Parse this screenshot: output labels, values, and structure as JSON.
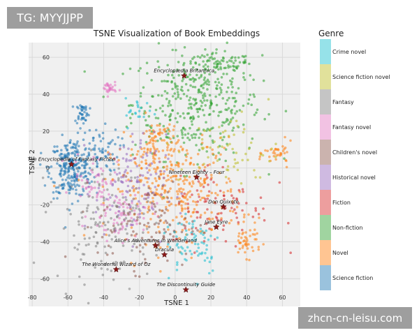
{
  "watermarks": {
    "top_left": "TG: MYYJJPP",
    "bottom_right": "zhcn-cn-leisu.com"
  },
  "chart_data": {
    "type": "scatter",
    "title": "TSNE Visualization of Book Embeddings",
    "xlabel": "TSNE 1",
    "ylabel": "TSNE 2",
    "xlim": [
      -82,
      70
    ],
    "ylim": [
      -75,
      68
    ],
    "xticks": [
      -80,
      -60,
      -40,
      -20,
      0,
      20,
      40,
      60
    ],
    "yticks": [
      -60,
      -40,
      -20,
      0,
      20,
      40,
      60
    ],
    "grid": true,
    "background": "#f0f0f0",
    "legend": {
      "title": "Genre",
      "placement": "right",
      "entries": [
        {
          "name": "Crime novel",
          "color": "#17becf"
        },
        {
          "name": "Science fiction novel",
          "color": "#bcbd22"
        },
        {
          "name": "Fantasy",
          "color": "#7f7f7f"
        },
        {
          "name": "Fantasy novel",
          "color": "#e377c2"
        },
        {
          "name": "Children's novel",
          "color": "#8c564b"
        },
        {
          "name": "Historical novel",
          "color": "#9467bd"
        },
        {
          "name": "Fiction",
          "color": "#d62728"
        },
        {
          "name": "Non-fiction",
          "color": "#2ca02c"
        },
        {
          "name": "Novel",
          "color": "#ff7f0e"
        },
        {
          "name": "Science fiction",
          "color": "#1f77b4"
        }
      ]
    },
    "clusters": [
      {
        "genre": "Non-fiction",
        "cx": 12,
        "cy": 35,
        "sx": 18,
        "sy": 15,
        "n": 380
      },
      {
        "genre": "Non-fiction",
        "cx": 25,
        "cy": 56,
        "sx": 9,
        "sy": 3,
        "n": 70
      },
      {
        "genre": "Science fiction",
        "cx": -58,
        "cy": 0,
        "sx": 6,
        "sy": 8,
        "n": 260
      },
      {
        "genre": "Science fiction",
        "cx": -52,
        "cy": 30,
        "sx": 2,
        "sy": 3,
        "n": 40
      },
      {
        "genre": "Science fiction",
        "cx": -43,
        "cy": 10,
        "sx": 6,
        "sy": 6,
        "n": 60
      },
      {
        "genre": "Novel",
        "cx": 0,
        "cy": -12,
        "sx": 18,
        "sy": 14,
        "n": 330
      },
      {
        "genre": "Novel",
        "cx": -10,
        "cy": 12,
        "sx": 6,
        "sy": 8,
        "n": 80
      },
      {
        "genre": "Novel",
        "cx": 40,
        "cy": -40,
        "sx": 4,
        "sy": 4,
        "n": 45
      },
      {
        "genre": "Novel",
        "cx": 58,
        "cy": 8,
        "sx": 4,
        "sy": 3,
        "n": 35
      },
      {
        "genre": "Fantasy novel",
        "cx": -37,
        "cy": 43,
        "sx": 2,
        "sy": 2,
        "n": 30
      },
      {
        "genre": "Fantasy novel",
        "cx": -30,
        "cy": -25,
        "sx": 9,
        "sy": 7,
        "n": 80
      },
      {
        "genre": "Fantasy novel",
        "cx": -45,
        "cy": -5,
        "sx": 6,
        "sy": 7,
        "n": 50
      },
      {
        "genre": "Historical novel",
        "cx": -25,
        "cy": -10,
        "sx": 10,
        "sy": 14,
        "n": 120
      },
      {
        "genre": "Children's novel",
        "cx": -15,
        "cy": -30,
        "sx": 14,
        "sy": 12,
        "n": 110
      },
      {
        "genre": "Crime novel",
        "cx": 10,
        "cy": -40,
        "sx": 8,
        "sy": 9,
        "n": 70
      },
      {
        "genre": "Crime novel",
        "cx": -20,
        "cy": 30,
        "sx": 4,
        "sy": 4,
        "n": 20
      },
      {
        "genre": "Fiction",
        "cx": 25,
        "cy": -20,
        "sx": 14,
        "sy": 12,
        "n": 90
      },
      {
        "genre": "Fantasy",
        "cx": -40,
        "cy": -30,
        "sx": 14,
        "sy": 16,
        "n": 140
      },
      {
        "genre": "Science fiction novel",
        "cx": 30,
        "cy": 10,
        "sx": 14,
        "sy": 10,
        "n": 60
      }
    ],
    "annotations": [
      {
        "label": "Encyclopædia Britannica",
        "x": 5,
        "y": 50
      },
      {
        "label": "The Encyclopedia of Fantasy Fiction",
        "x": -58,
        "y": 2
      },
      {
        "label": "Nineteen Eighty – Four",
        "x": 12,
        "y": -5
      },
      {
        "label": "Don Quixote",
        "x": 27,
        "y": -21
      },
      {
        "label": "Jane Eyre",
        "x": 23,
        "y": -32
      },
      {
        "label": "Alice's Adventures in Wonderland",
        "x": -11,
        "y": -42
      },
      {
        "label": "Dracula",
        "x": -6,
        "y": -47
      },
      {
        "label": "The Wonderful Wizard of Oz",
        "x": -33,
        "y": -55
      },
      {
        "label": "The Discontinuity Guide",
        "x": 6,
        "y": -66
      }
    ]
  }
}
